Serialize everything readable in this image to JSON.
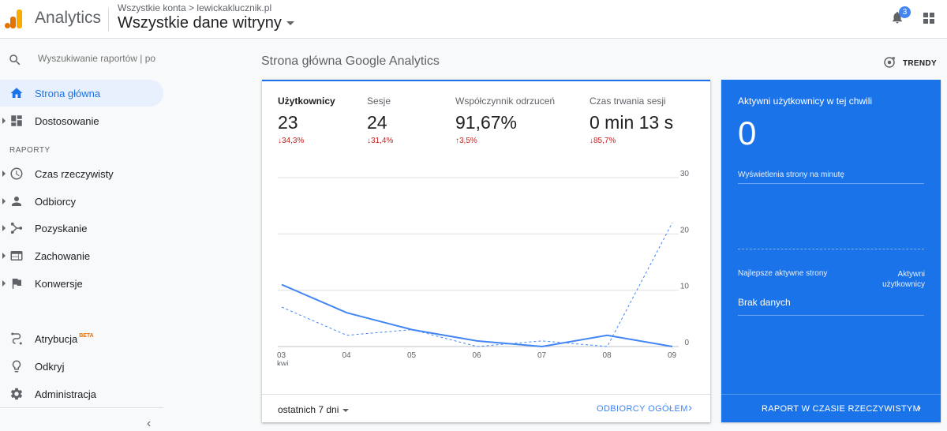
{
  "header": {
    "app_name": "Analytics",
    "breadcrumb_root": "Wszystkie konta",
    "breadcrumb_sep": ">",
    "breadcrumb_account": "lewickakluсznik.pl",
    "property": "Wszystkie dane witryny",
    "notification_count": "3",
    "logo_colors": [
      "#f9ab00",
      "#e37400"
    ]
  },
  "sidebar": {
    "search_placeholder": "Wyszukiwanie raportów | po",
    "items_top": [
      {
        "label": "Strona główna",
        "icon": "home-icon",
        "active": true
      },
      {
        "label": "Dostosowanie",
        "icon": "dashboard-icon",
        "active": false
      }
    ],
    "section_label": "RAPORTY",
    "reports": [
      {
        "label": "Czas rzeczywisty",
        "icon": "clock-icon"
      },
      {
        "label": "Odbiorcy",
        "icon": "person-icon"
      },
      {
        "label": "Pozyskanie",
        "icon": "acquisition-icon"
      },
      {
        "label": "Zachowanie",
        "icon": "behavior-icon"
      },
      {
        "label": "Konwersje",
        "icon": "flag-icon"
      }
    ],
    "bottom": [
      {
        "label": "Atrybucja",
        "badge": "BETA",
        "icon": "attribution-icon"
      },
      {
        "label": "Odkryj",
        "icon": "lightbulb-icon"
      },
      {
        "label": "Administracja",
        "icon": "gear-icon"
      }
    ],
    "collapse_glyph": "‹"
  },
  "main": {
    "title": "Strona główna Google Analytics",
    "trends_label": "TRENDY",
    "accent": "#1a73e8"
  },
  "overview": {
    "metrics": [
      {
        "label": "Użytkownicy",
        "value": "23",
        "delta": "↓34,3%",
        "active": true
      },
      {
        "label": "Sesje",
        "value": "24",
        "delta": "↓31,4%"
      },
      {
        "label": "Współczynnik odrzuceń",
        "value": "91,67%",
        "delta": "↑3,5%"
      },
      {
        "label": "Czas trwania sesji",
        "value": "0 min 13 s",
        "delta": "↓85,7%"
      }
    ],
    "date_range": "ostatnich 7 dni",
    "audience_link": "ODBIORCY OGÓŁEM",
    "link_chevron": "›"
  },
  "chart_data": {
    "type": "line",
    "x": [
      "03",
      "04",
      "05",
      "06",
      "07",
      "08",
      "09"
    ],
    "x_sub_label": "kwi",
    "y_ticks": [
      "0",
      "10",
      "20",
      "30"
    ],
    "ylim": [
      0,
      30
    ],
    "grid": true,
    "series": [
      {
        "values": [
          11,
          6,
          3,
          1,
          0,
          2,
          0
        ],
        "style": "solid",
        "color": "#4285f4"
      },
      {
        "values": [
          7,
          2,
          3,
          0,
          1,
          0,
          22
        ],
        "style": "dashed",
        "color": "#4285f4"
      }
    ]
  },
  "realtime": {
    "title": "Aktywni użytkownicy w tej chwili",
    "count": "0",
    "pageviews_label": "Wyświetlenia strony na minutę",
    "top_pages_label": "Najlepsze aktywne strony",
    "active_users_label": "Aktywni użytkownicy",
    "no_data": "Brak danych",
    "link": "RAPORT W CZASIE RZECZYWISTYM",
    "link_chevron": "›",
    "bg_color": "#1a73e8"
  }
}
